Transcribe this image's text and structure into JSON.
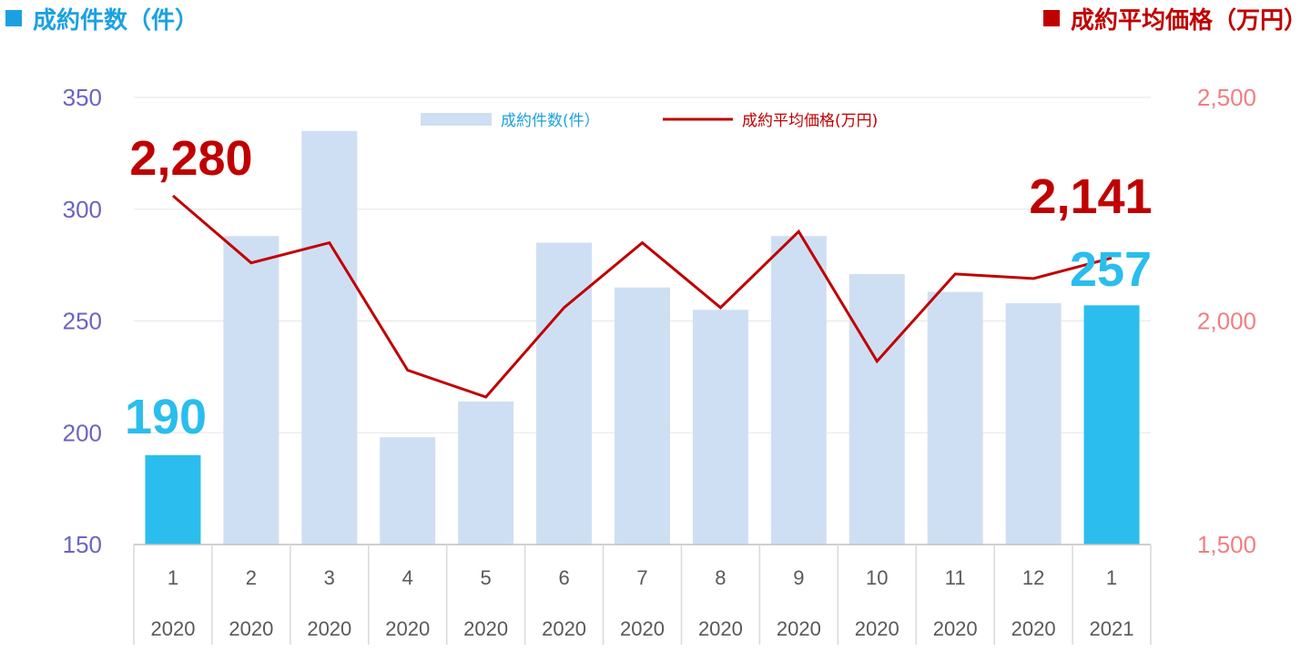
{
  "header": {
    "left_title": "成約件数（件）",
    "right_title": "成約平均価格（万円）",
    "left_color": "#1ba1e2",
    "right_color": "#c00000"
  },
  "legend": {
    "bar_label": "成約件数(件）",
    "line_label": "成約平均価格(万円)"
  },
  "callouts": {
    "first_bar": "190",
    "last_bar": "257",
    "first_line": "2,280",
    "last_line": "2,141"
  },
  "chart_data": {
    "type": "bar",
    "categories": [
      "1",
      "2",
      "3",
      "4",
      "5",
      "6",
      "7",
      "8",
      "9",
      "10",
      "11",
      "12",
      "1"
    ],
    "years": [
      "2020",
      "2020",
      "2020",
      "2020",
      "2020",
      "2020",
      "2020",
      "2020",
      "2020",
      "2020",
      "2020",
      "2020",
      "2021"
    ],
    "series": [
      {
        "name": "成約件数(件）",
        "type": "bar",
        "axis": "left",
        "values": [
          190,
          288,
          335,
          198,
          214,
          285,
          265,
          255,
          288,
          271,
          263,
          258,
          257
        ],
        "color": "#cfdff3",
        "highlight_color": "#2abdee",
        "highlight_indices": [
          0,
          12
        ]
      },
      {
        "name": "成約平均価格(万円)",
        "type": "line",
        "axis": "right",
        "values": [
          2280,
          2130,
          2175,
          1890,
          1830,
          2030,
          2175,
          2030,
          2200,
          1910,
          2105,
          2095,
          2141
        ],
        "color": "#c00000"
      }
    ],
    "y_left": {
      "min": 150,
      "max": 350,
      "ticks": [
        "350",
        "300",
        "250",
        "200",
        "150"
      ],
      "color": "#6b64c4"
    },
    "y_right": {
      "min": 1500,
      "max": 2500,
      "ticks": [
        "2,500",
        "2,000",
        "1,500"
      ],
      "color": "#f08080"
    },
    "grid": true,
    "legend_position": "top-center"
  }
}
